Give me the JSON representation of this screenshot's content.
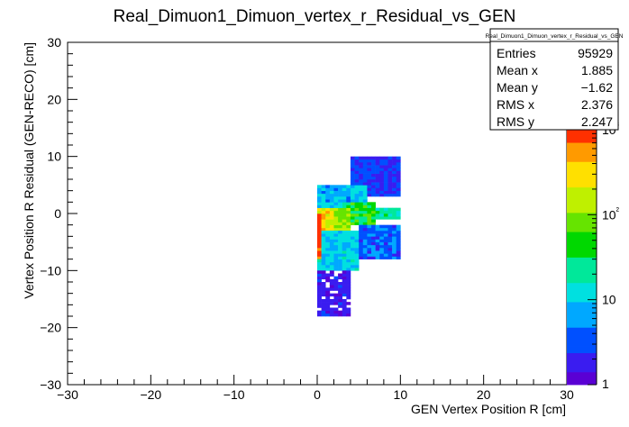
{
  "chart_data": {
    "type": "heatmap",
    "title": "Real_Dimuon1_Dimuon_vertex_r_Residual_vs_GEN",
    "xlabel": "GEN Vertex Position R [cm]",
    "ylabel": "Vertex Position R Residual (GEN-RECO) [cm]",
    "xlim": [
      -30,
      30
    ],
    "ylim": [
      -30,
      30
    ],
    "x_ticks": [
      "−30",
      "−20",
      "−10",
      "0",
      "10",
      "20",
      "30"
    ],
    "y_ticks": [
      "−30",
      "−20",
      "−10",
      "0",
      "10",
      "20",
      "30"
    ],
    "z_scale": "log",
    "z_range": [
      1,
      1000
    ],
    "z_ticks": [
      "1",
      "10",
      "10²",
      "10³"
    ],
    "grid": false,
    "stats_box": {
      "title": "Real_Dimuon1_Dimuon_vertex_r_Residual_vs_GEN",
      "rows": [
        {
          "label": "Entries",
          "value": "95929"
        },
        {
          "label": "Mean x",
          "value": "1.885"
        },
        {
          "label": "Mean y",
          "value": "−1.62"
        },
        {
          "label": "RMS x",
          "value": "2.376"
        },
        {
          "label": "RMS y",
          "value": "2.247"
        }
      ]
    },
    "density_regions": [
      {
        "x": [
          0,
          0.5
        ],
        "y": [
          -8,
          0
        ],
        "level": 3.0
      },
      {
        "x": [
          0,
          2
        ],
        "y": [
          -3,
          1
        ],
        "level": 2.4
      },
      {
        "x": [
          1,
          4
        ],
        "y": [
          -3,
          1
        ],
        "level": 2.0
      },
      {
        "x": [
          3,
          7
        ],
        "y": [
          -2,
          2
        ],
        "level": 1.6
      },
      {
        "x": [
          6,
          10
        ],
        "y": [
          -1,
          1
        ],
        "level": 1.3
      },
      {
        "x": [
          0,
          6
        ],
        "y": [
          1,
          5
        ],
        "level": 0.9
      },
      {
        "x": [
          4,
          10
        ],
        "y": [
          3,
          10
        ],
        "level": 0.4
      },
      {
        "x": [
          0,
          5
        ],
        "y": [
          -10,
          -3
        ],
        "level": 1.0
      },
      {
        "x": [
          5,
          10
        ],
        "y": [
          -8,
          -2
        ],
        "level": 0.6
      },
      {
        "x": [
          0,
          4
        ],
        "y": [
          -18,
          -10
        ],
        "level": 0.2
      }
    ],
    "palette": [
      "#5a00d4",
      "#3a1cf0",
      "#0050ff",
      "#00a8ff",
      "#00e0e0",
      "#00e89a",
      "#00d800",
      "#66e400",
      "#bff000",
      "#ffe000",
      "#ff9a00",
      "#ff3000"
    ]
  }
}
